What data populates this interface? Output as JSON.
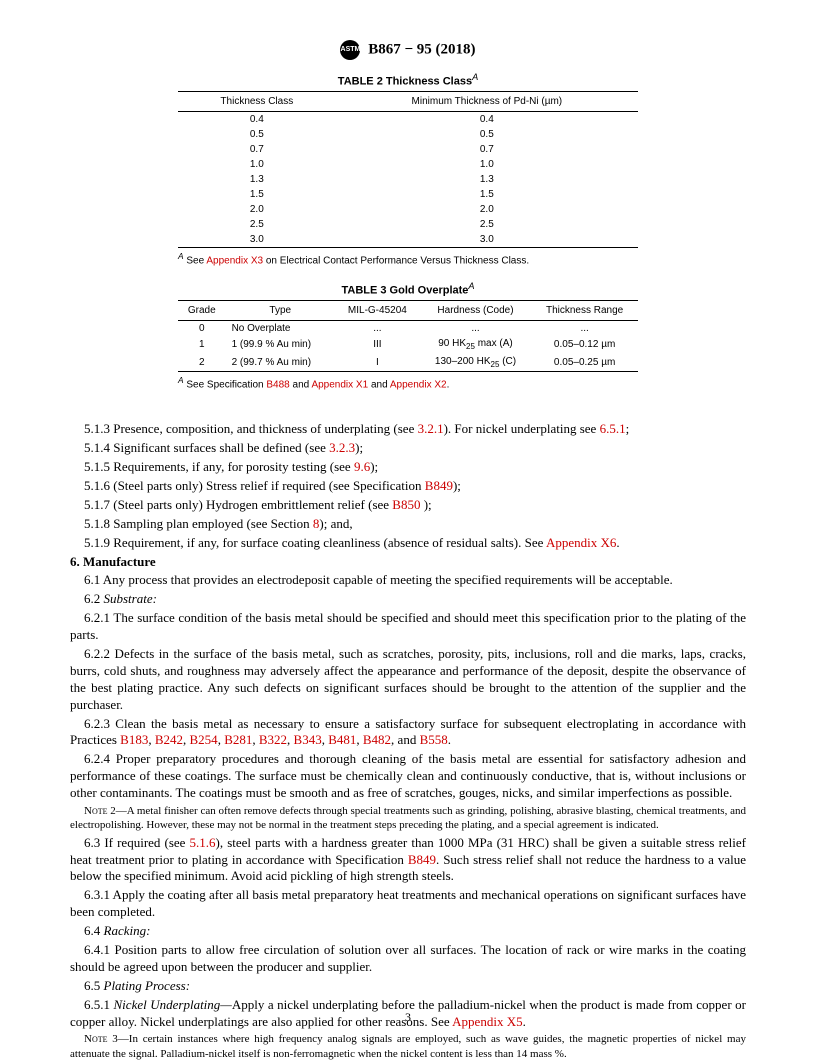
{
  "header": {
    "designation": "B867 − 95 (2018)"
  },
  "table2": {
    "title": "TABLE 2 Thickness Class",
    "footmark": "A",
    "col1": "Thickness Class",
    "col2": "Minimum Thickness of Pd-Ni (µm)",
    "rows": [
      [
        "0.4",
        "0.4"
      ],
      [
        "0.5",
        "0.5"
      ],
      [
        "0.7",
        "0.7"
      ],
      [
        "1.0",
        "1.0"
      ],
      [
        "1.3",
        "1.3"
      ],
      [
        "1.5",
        "1.5"
      ],
      [
        "2.0",
        "2.0"
      ],
      [
        "2.5",
        "2.5"
      ],
      [
        "3.0",
        "3.0"
      ]
    ],
    "footnote_pre": " See ",
    "footnote_link": "Appendix X3",
    "footnote_post": " on Electrical Contact Performance Versus Thickness Class."
  },
  "table3": {
    "title": "TABLE 3 Gold Overplate",
    "footmark": "A",
    "cols": [
      "Grade",
      "Type",
      "MIL-G-45204",
      "Hardness (Code)",
      "Thickness Range"
    ],
    "rows": [
      [
        "0",
        "No Overplate",
        "...",
        "...",
        "..."
      ],
      [
        "1",
        "1 (99.9 % Au min)",
        "III",
        "90 HK₂₅ max (A)",
        "0.05–0.12 µm"
      ],
      [
        "2",
        "2 (99.7 % Au min)",
        "I",
        "130–200 HK₂₅ (C)",
        "0.05–0.25 µm"
      ]
    ],
    "footnote_pre": " See Specification ",
    "footnote_l1": "B488",
    "footnote_mid1": " and ",
    "footnote_l2": "Appendix X1",
    "footnote_mid2": " and ",
    "footnote_l3": "Appendix X2",
    "footnote_post": "."
  },
  "paras": {
    "p513a": "5.1.3 Presence, composition, and thickness of underplating (see ",
    "p513l1": "3.2.1",
    "p513b": "). For nickel underplating see ",
    "p513l2": "6.5.1",
    "p513c": ";",
    "p514a": "5.1.4 Significant surfaces shall be defined (see ",
    "p514l": "3.2.3",
    "p514b": ");",
    "p515a": "5.1.5 Requirements, if any, for porosity testing (see ",
    "p515l": "9.6",
    "p515b": ");",
    "p516a": "5.1.6 (Steel parts only) Stress relief if required (see Specification ",
    "p516l": "B849",
    "p516b": ");",
    "p517a": "5.1.7 (Steel parts only) Hydrogen embrittlement relief (see ",
    "p517l": "B850",
    "p517b": " );",
    "p518a": "5.1.8 Sampling plan employed (see Section ",
    "p518l": "8",
    "p518b": "); and,",
    "p519a": "5.1.9 Requirement, if any, for surface coating cleanliness (absence of residual salts). See ",
    "p519l": "Appendix X6",
    "p519b": "."
  },
  "sec6": {
    "head": "6. Manufacture",
    "p61": "6.1 Any process that provides an electrodeposit capable of meeting the specified requirements will be acceptable.",
    "p62head": "6.2 ",
    "p62italic": "Substrate:",
    "p621": "6.2.1 The surface condition of the basis metal should be specified and should meet this specification prior to the plating of the parts.",
    "p622": "6.2.2 Defects in the surface of the basis metal, such as scratches, porosity, pits, inclusions, roll and die marks, laps, cracks, burrs, cold shuts, and roughness may adversely affect the appearance and performance of the deposit, despite the observance of the best plating practice. Any such defects on significant surfaces should be brought to the attention of the supplier and the purchaser.",
    "p623a": "6.2.3 Clean the basis metal as necessary to ensure a satisfactory surface for subsequent electroplating in accordance with Practices ",
    "p623links": [
      "B183",
      "B242",
      "B254",
      "B281",
      "B322",
      "B343",
      "B481",
      "B482"
    ],
    "p623andlink": "B558",
    "p623b": ".",
    "p624": "6.2.4 Proper preparatory procedures and thorough cleaning of the basis metal are essential for satisfactory adhesion and performance of these coatings. The surface must be chemically clean and continuously conductive, that is, without inclusions or other contaminants. The coatings must be smooth and as free of scratches, gouges, nicks, and similar imperfections as possible.",
    "note2label": "Note 2—",
    "note2": "A metal finisher can often remove defects through special treatments such as grinding, polishing, abrasive blasting, chemical treatments, and electropolishing. However, these may not be normal in the treatment steps preceding the plating, and a special agreement is indicated.",
    "p63a": "6.3 If required (see ",
    "p63l1": "5.1.6",
    "p63b": "), steel parts with a hardness greater than 1000 MPa (31 HRC) shall be given a suitable stress relief heat treatment prior to plating in accordance with Specification ",
    "p63l2": "B849",
    "p63c": ". Such stress relief shall not reduce the hardness to a value below the specified minimum. Avoid acid pickling of high strength steels.",
    "p631": "6.3.1 Apply the coating after all basis metal preparatory heat treatments and mechanical operations on significant surfaces have been completed.",
    "p64head": "6.4 ",
    "p64italic": "Racking:",
    "p641": "6.4.1 Position parts to allow free circulation of solution over all surfaces. The location of rack or wire marks in the coating should be agreed upon between the producer and supplier.",
    "p65head": "6.5 ",
    "p65italic": "Plating Process:",
    "p651a": "6.5.1 ",
    "p651italic": "Nickel Underplating—",
    "p651b": "Apply a nickel underplating before the palladium-nickel when the product is made from copper or copper alloy. Nickel underplatings are also applied for other reasons. See ",
    "p651l": "Appendix X5",
    "p651c": ".",
    "note3label": "Note 3—",
    "note3": "In certain instances where high frequency analog signals are employed, such as wave guides, the magnetic properties of nickel may attenuate the signal. Palladium-nickel itself is non-ferromagnetic when the nickel content is less than 14 mass %."
  },
  "pagenum": "3"
}
